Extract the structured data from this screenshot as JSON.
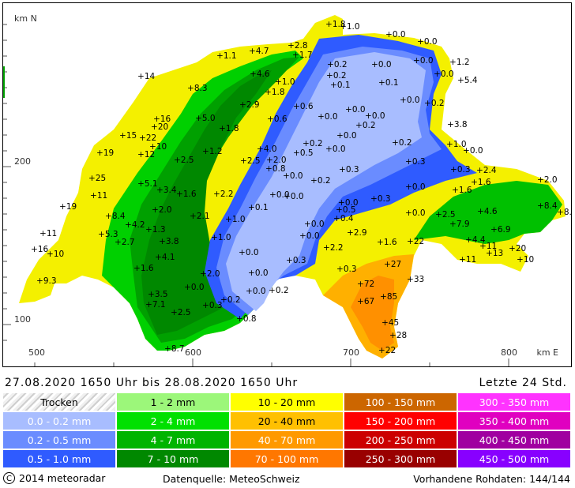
{
  "map": {
    "north_unit": "km N",
    "east_unit": "km E",
    "y_ticks": [
      {
        "v": "200",
        "pos": 200
      },
      {
        "v": "100",
        "pos": 100
      }
    ],
    "x_ticks": [
      {
        "v": "500",
        "pos": 500
      },
      {
        "v": "600",
        "pos": 600
      },
      {
        "v": "700",
        "pos": 700
      },
      {
        "v": "800",
        "pos": 800
      }
    ],
    "stations": [
      {
        "v": "1.8",
        "x": 408,
        "y": 30
      },
      {
        "v": "1.0",
        "x": 426,
        "y": 33
      },
      {
        "v": "0.0",
        "x": 484,
        "y": 43
      },
      {
        "v": "0.0",
        "x": 524,
        "y": 52
      },
      {
        "v": "2.8",
        "x": 360,
        "y": 57
      },
      {
        "v": "4.7",
        "x": 311,
        "y": 64
      },
      {
        "v": "1.7",
        "x": 366,
        "y": 69
      },
      {
        "v": "1.1",
        "x": 270,
        "y": 70
      },
      {
        "v": "1.2",
        "x": 565,
        "y": 78
      },
      {
        "v": "0.0",
        "x": 519,
        "y": 76
      },
      {
        "v": "0.2",
        "x": 410,
        "y": 81
      },
      {
        "v": "0.0",
        "x": 466,
        "y": 81
      },
      {
        "v": "0.0",
        "x": 545,
        "y": 93
      },
      {
        "v": "4.6",
        "x": 312,
        "y": 93
      },
      {
        "v": "0.2",
        "x": 409,
        "y": 95
      },
      {
        "v": "14",
        "x": 170,
        "y": 96
      },
      {
        "v": "1.0",
        "x": 344,
        "y": 103
      },
      {
        "v": "0.1",
        "x": 414,
        "y": 107
      },
      {
        "v": "0.1",
        "x": 475,
        "y": 104
      },
      {
        "v": "5.4",
        "x": 575,
        "y": 101
      },
      {
        "v": "8.3",
        "x": 233,
        "y": 111
      },
      {
        "v": "1.8",
        "x": 331,
        "y": 116
      },
      {
        "v": "0.0",
        "x": 502,
        "y": 126
      },
      {
        "v": "0.2",
        "x": 533,
        "y": 130
      },
      {
        "v": "2.9",
        "x": 299,
        "y": 132
      },
      {
        "v": "0.6",
        "x": 367,
        "y": 134
      },
      {
        "v": "0.0",
        "x": 433,
        "y": 138
      },
      {
        "v": "0.0",
        "x": 458,
        "y": 146
      },
      {
        "v": "0.0",
        "x": 398,
        "y": 147
      },
      {
        "v": "16",
        "x": 190,
        "y": 150
      },
      {
        "v": "5.0",
        "x": 243,
        "y": 149
      },
      {
        "v": "0.6",
        "x": 334,
        "y": 150
      },
      {
        "v": "0.2",
        "x": 446,
        "y": 158
      },
      {
        "v": "3.8",
        "x": 562,
        "y": 157
      },
      {
        "v": "20",
        "x": 187,
        "y": 160
      },
      {
        "v": "1.8",
        "x": 273,
        "y": 162
      },
      {
        "v": "0.0",
        "x": 422,
        "y": 171
      },
      {
        "v": "15",
        "x": 147,
        "y": 171
      },
      {
        "v": "22",
        "x": 172,
        "y": 174
      },
      {
        "v": "0.2",
        "x": 379,
        "y": 181
      },
      {
        "v": "0.2",
        "x": 492,
        "y": 180
      },
      {
        "v": "1.0",
        "x": 561,
        "y": 182
      },
      {
        "v": "10",
        "x": 185,
        "y": 185
      },
      {
        "v": "4.0",
        "x": 321,
        "y": 188
      },
      {
        "v": "0.0",
        "x": 408,
        "y": 188
      },
      {
        "v": "0.0",
        "x": 582,
        "y": 190
      },
      {
        "v": "1.2",
        "x": 252,
        "y": 191
      },
      {
        "v": "0.5",
        "x": 367,
        "y": 193
      },
      {
        "v": "12",
        "x": 170,
        "y": 195
      },
      {
        "v": "19",
        "x": 118,
        "y": 193
      },
      {
        "v": "2.0",
        "x": 333,
        "y": 202
      },
      {
        "v": "2.5",
        "x": 300,
        "y": 203
      },
      {
        "v": "0.3",
        "x": 509,
        "y": 204
      },
      {
        "v": "2.5",
        "x": 216,
        "y": 202
      },
      {
        "v": "0.8",
        "x": 332,
        "y": 213
      },
      {
        "v": "0.3",
        "x": 425,
        "y": 214
      },
      {
        "v": "0.3",
        "x": 566,
        "y": 214
      },
      {
        "v": "2.4",
        "x": 599,
        "y": 215
      },
      {
        "v": "0.0",
        "x": 354,
        "y": 222
      },
      {
        "v": "0.2",
        "x": 389,
        "y": 228
      },
      {
        "v": "25",
        "x": 108,
        "y": 225
      },
      {
        "v": "5.1",
        "x": 170,
        "y": 232
      },
      {
        "v": "1.6",
        "x": 592,
        "y": 230
      },
      {
        "v": "2.0",
        "x": 676,
        "y": 227
      },
      {
        "v": "0.0",
        "x": 509,
        "y": 236
      },
      {
        "v": "3.4",
        "x": 194,
        "y": 240
      },
      {
        "v": "1.6",
        "x": 568,
        "y": 240
      },
      {
        "v": "1.6",
        "x": 219,
        "y": 245
      },
      {
        "v": "2.2",
        "x": 266,
        "y": 245
      },
      {
        "v": "0.0",
        "x": 337,
        "y": 246
      },
      {
        "v": "0.0",
        "x": 355,
        "y": 248
      },
      {
        "v": "11",
        "x": 110,
        "y": 247
      },
      {
        "v": "0.3",
        "x": 465,
        "y": 251
      },
      {
        "v": "0.0",
        "x": 424,
        "y": 256
      },
      {
        "v": "0.1",
        "x": 310,
        "y": 262
      },
      {
        "v": "2.0",
        "x": 188,
        "y": 265
      },
      {
        "v": "0.5",
        "x": 421,
        "y": 265
      },
      {
        "v": "19",
        "x": 71,
        "y": 261
      },
      {
        "v": "4.6",
        "x": 600,
        "y": 267
      },
      {
        "v": "8.4",
        "x": 676,
        "y": 260
      },
      {
        "v": "8.4",
        "x": 701,
        "y": 268
      },
      {
        "v": "2.1",
        "x": 236,
        "y": 273
      },
      {
        "v": "8.4",
        "x": 129,
        "y": 273
      },
      {
        "v": "0.0",
        "x": 509,
        "y": 269
      },
      {
        "v": "2.5",
        "x": 547,
        "y": 271
      },
      {
        "v": "1.0",
        "x": 281,
        "y": 277
      },
      {
        "v": "0.4",
        "x": 418,
        "y": 276
      },
      {
        "v": "0.0",
        "x": 381,
        "y": 283
      },
      {
        "v": "7.9",
        "x": 565,
        "y": 283
      },
      {
        "v": "4.2",
        "x": 154,
        "y": 284
      },
      {
        "v": "6.9",
        "x": 617,
        "y": 290
      },
      {
        "v": "1.3",
        "x": 180,
        "y": 290
      },
      {
        "v": "2.9",
        "x": 435,
        "y": 294
      },
      {
        "v": "0.0",
        "x": 375,
        "y": 298
      },
      {
        "v": "5.3",
        "x": 120,
        "y": 296
      },
      {
        "v": "11",
        "x": 46,
        "y": 295
      },
      {
        "v": "1.0",
        "x": 263,
        "y": 300
      },
      {
        "v": "3.8",
        "x": 197,
        "y": 305
      },
      {
        "v": "1.6",
        "x": 473,
        "y": 306
      },
      {
        "v": "22",
        "x": 511,
        "y": 305
      },
      {
        "v": "4.4",
        "x": 585,
        "y": 303
      },
      {
        "v": "2.7",
        "x": 141,
        "y": 306
      },
      {
        "v": "2.2",
        "x": 405,
        "y": 313
      },
      {
        "v": "11",
        "x": 603,
        "y": 311
      },
      {
        "v": "20",
        "x": 640,
        "y": 314
      },
      {
        "v": "13",
        "x": 611,
        "y": 320
      },
      {
        "v": "16",
        "x": 35,
        "y": 315
      },
      {
        "v": "10",
        "x": 55,
        "y": 321
      },
      {
        "v": "0.0",
        "x": 298,
        "y": 319
      },
      {
        "v": "4.1",
        "x": 192,
        "y": 325
      },
      {
        "v": "0.3",
        "x": 358,
        "y": 329
      },
      {
        "v": "11",
        "x": 577,
        "y": 328
      },
      {
        "v": "10",
        "x": 650,
        "y": 328
      },
      {
        "v": "27",
        "x": 482,
        "y": 334
      },
      {
        "v": "1.6",
        "x": 165,
        "y": 339
      },
      {
        "v": "0.3",
        "x": 422,
        "y": 340
      },
      {
        "v": "0.0",
        "x": 310,
        "y": 345
      },
      {
        "v": "2.0",
        "x": 249,
        "y": 346
      },
      {
        "v": "33",
        "x": 511,
        "y": 353
      },
      {
        "v": "9.3",
        "x": 42,
        "y": 355
      },
      {
        "v": "72",
        "x": 448,
        "y": 359
      },
      {
        "v": "0.0",
        "x": 229,
        "y": 363
      },
      {
        "v": "0.2",
        "x": 336,
        "y": 367
      },
      {
        "v": "0.0",
        "x": 307,
        "y": 368
      },
      {
        "v": "3.5",
        "x": 183,
        "y": 372
      },
      {
        "v": "85",
        "x": 477,
        "y": 375
      },
      {
        "v": "0.2",
        "x": 275,
        "y": 379
      },
      {
        "v": "67",
        "x": 448,
        "y": 381
      },
      {
        "v": "7.1",
        "x": 180,
        "y": 385
      },
      {
        "v": "0.3",
        "x": 252,
        "y": 386
      },
      {
        "v": "2.5",
        "x": 212,
        "y": 395
      },
      {
        "v": "0.8",
        "x": 295,
        "y": 403
      },
      {
        "v": "45",
        "x": 479,
        "y": 408
      },
      {
        "v": "28",
        "x": 489,
        "y": 424
      },
      {
        "v": "8.7",
        "x": 204,
        "y": 441
      },
      {
        "v": "22",
        "x": 475,
        "y": 443
      }
    ]
  },
  "period": {
    "text": "27.08.2020 1650 Uhr  bis  28.08.2020 1650 Uhr",
    "window": "Letzte 24 Std."
  },
  "legend": [
    [
      {
        "label": "Trocken",
        "color": "#e8e8e8",
        "style": "dry"
      },
      {
        "label": "1 - 2 mm",
        "color": "#9cf77a"
      },
      {
        "label": "10 - 20 mm",
        "color": "#ffff00"
      },
      {
        "label": "100 - 150 mm",
        "color": "#cc6600"
      },
      {
        "label": "300 - 350 mm",
        "color": "#ff33ff"
      }
    ],
    [
      {
        "label": "0.0 - 0.2 mm",
        "color": "#a8bdff"
      },
      {
        "label": "2 - 4 mm",
        "color": "#00e000"
      },
      {
        "label": "20 - 40 mm",
        "color": "#ffc000"
      },
      {
        "label": "150 - 200 mm",
        "color": "#ff0000"
      },
      {
        "label": "350 - 400 mm",
        "color": "#e000c0"
      }
    ],
    [
      {
        "label": "0.2 - 0.5 mm",
        "color": "#6a8cff"
      },
      {
        "label": "4 - 7 mm",
        "color": "#00b400"
      },
      {
        "label": "40 - 70 mm",
        "color": "#ff9900"
      },
      {
        "label": "200 - 250 mm",
        "color": "#cc0000"
      },
      {
        "label": "400 - 450 mm",
        "color": "#a000a0"
      }
    ],
    [
      {
        "label": "0.5 - 1.0 mm",
        "color": "#2f5bff"
      },
      {
        "label": "7 - 10 mm",
        "color": "#008800"
      },
      {
        "label": "70 - 100 mm",
        "color": "#ff7700"
      },
      {
        "label": "250 - 300 mm",
        "color": "#990000"
      },
      {
        "label": "450 - 500 mm",
        "color": "#8800ff"
      }
    ]
  ],
  "footer": {
    "copyright": "2014  meteoradar",
    "copyright_symbol": "C",
    "source": "Datenquelle: MeteoSchweiz",
    "raw": "Vorhandene Rohdaten: 144/144"
  }
}
